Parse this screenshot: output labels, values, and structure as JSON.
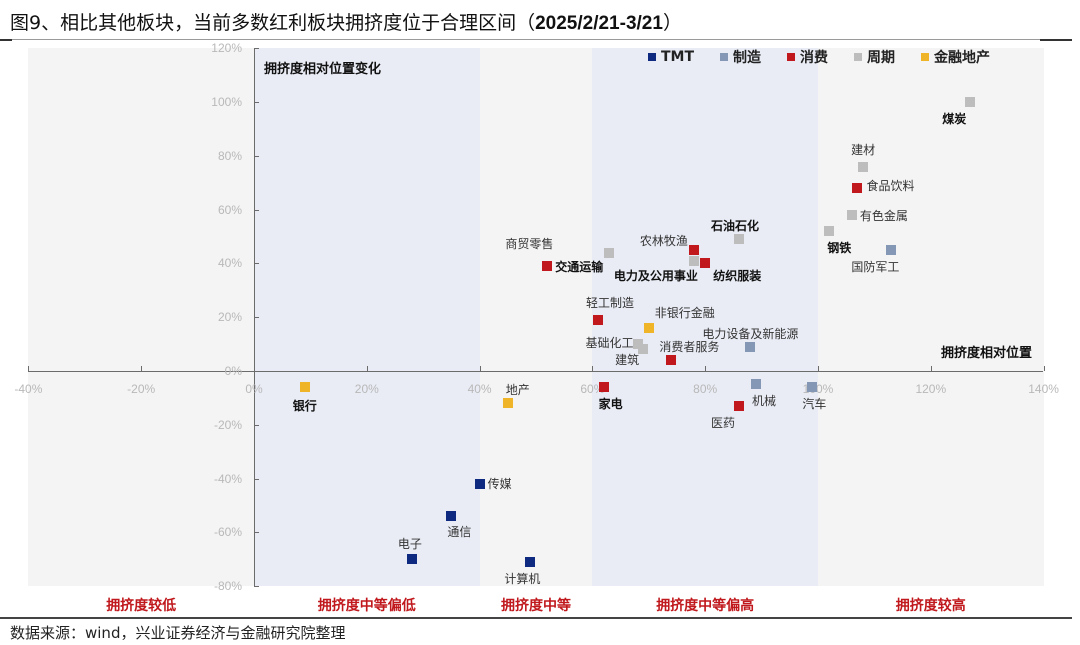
{
  "title": {
    "prefix": "图9、相比其他板块，当前多数红利板块拥挤度位于合理区间（",
    "date_range": "2025/2/21-3/21",
    "suffix": "）"
  },
  "source": "数据来源：wind，兴业证券经济与金融研究院整理",
  "chart_data": {
    "type": "scatter",
    "title": "相比其他板块，当前多数红利板块拥挤度位于合理区间（2025/2/21-3/21）",
    "xlabel": "拥挤度相对位置",
    "ylabel": "拥挤度相对位置变化",
    "xlim": [
      -40,
      140
    ],
    "ylim": [
      -80,
      120
    ],
    "x_ticks": [
      "-40%",
      "-20%",
      "0%",
      "20%",
      "40%",
      "60%",
      "80%",
      "100%",
      "120%",
      "140%"
    ],
    "x_tick_values": [
      -40,
      -20,
      0,
      20,
      40,
      60,
      80,
      100,
      120,
      140
    ],
    "y_ticks": [
      "120%",
      "100%",
      "80%",
      "60%",
      "40%",
      "20%",
      "0%",
      "-20%",
      "-40%",
      "-60%",
      "-80%"
    ],
    "y_tick_values": [
      120,
      100,
      80,
      60,
      40,
      20,
      0,
      -20,
      -40,
      -60,
      -80
    ],
    "grid": false,
    "legend_position": "top-right",
    "legend": [
      {
        "name": "TMT",
        "color": "#0d2a80"
      },
      {
        "name": "制造",
        "color": "#8497b5"
      },
      {
        "name": "消费",
        "color": "#c0181c"
      },
      {
        "name": "周期",
        "color": "#bdbdbd"
      },
      {
        "name": "金融地产",
        "color": "#f0b429"
      }
    ],
    "zones": [
      {
        "label": "拥挤度较低",
        "from": -40,
        "to": 0
      },
      {
        "label": "拥挤度中等偏低",
        "from": 0,
        "to": 40
      },
      {
        "label": "拥挤度中等",
        "from": 40,
        "to": 60
      },
      {
        "label": "拥挤度中等偏高",
        "from": 60,
        "to": 100
      },
      {
        "label": "拥挤度较高",
        "from": 100,
        "to": 140
      }
    ],
    "series": [
      {
        "name": "TMT",
        "color": "#0d2a80",
        "points": [
          {
            "label": "传媒",
            "x": 40,
            "y": -42
          },
          {
            "label": "通信",
            "x": 35,
            "y": -54
          },
          {
            "label": "电子",
            "x": 28,
            "y": -70
          },
          {
            "label": "计算机",
            "x": 49,
            "y": -71
          }
        ]
      },
      {
        "name": "制造",
        "color": "#8497b5",
        "points": [
          {
            "label": "国防军工",
            "x": 113,
            "y": 45
          },
          {
            "label": "电力设备及新能源",
            "x": 88,
            "y": 9
          },
          {
            "label": "机械",
            "x": 89,
            "y": -5
          },
          {
            "label": "汽车",
            "x": 99,
            "y": -6
          }
        ]
      },
      {
        "name": "消费",
        "color": "#c0181c",
        "points": [
          {
            "label": "食品饮料",
            "x": 107,
            "y": 68
          },
          {
            "label": "农林牧渔",
            "x": 78,
            "y": 45
          },
          {
            "label": "纺织服装",
            "x": 80,
            "y": 40
          },
          {
            "label": "交通运输",
            "x": 52,
            "y": 39
          },
          {
            "label": "轻工制造",
            "x": 61,
            "y": 19
          },
          {
            "label": "消费者服务",
            "x": 74,
            "y": 4
          },
          {
            "label": "家电",
            "x": 62,
            "y": -6
          },
          {
            "label": "医药",
            "x": 86,
            "y": -13
          }
        ]
      },
      {
        "name": "周期",
        "color": "#bdbdbd",
        "points": [
          {
            "label": "煤炭",
            "x": 127,
            "y": 100
          },
          {
            "label": "建材",
            "x": 108,
            "y": 76
          },
          {
            "label": "有色金属",
            "x": 106,
            "y": 58
          },
          {
            "label": "钢铁",
            "x": 102,
            "y": 52
          },
          {
            "label": "石油石化",
            "x": 86,
            "y": 49
          },
          {
            "label": "电力及公用事业",
            "x": 78,
            "y": 41
          },
          {
            "label": "商贸零售",
            "x": 63,
            "y": 44
          },
          {
            "label": "基础化工",
            "x": 68,
            "y": 10
          },
          {
            "label": "建筑",
            "x": 69,
            "y": 8
          }
        ]
      },
      {
        "name": "金融地产",
        "color": "#f0b429",
        "points": [
          {
            "label": "非银行金融",
            "x": 70,
            "y": 16
          },
          {
            "label": "银行",
            "x": 9,
            "y": -6
          },
          {
            "label": "地产",
            "x": 45,
            "y": -12
          }
        ]
      }
    ]
  }
}
